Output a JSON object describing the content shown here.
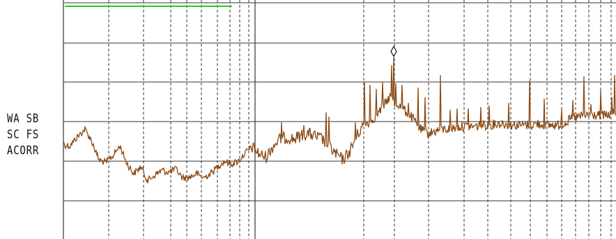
{
  "labels": {
    "line1": "WA SB",
    "line2": "SC FS",
    "line3": "ACORR"
  },
  "colors": {
    "background": "#ffffff",
    "trace": "#8b4a14",
    "grid": "#333333",
    "marker_bar": "#22cc22",
    "label_text": "#111111"
  },
  "icons": {
    "peak_marker": "diamond-marker-icon"
  }
}
